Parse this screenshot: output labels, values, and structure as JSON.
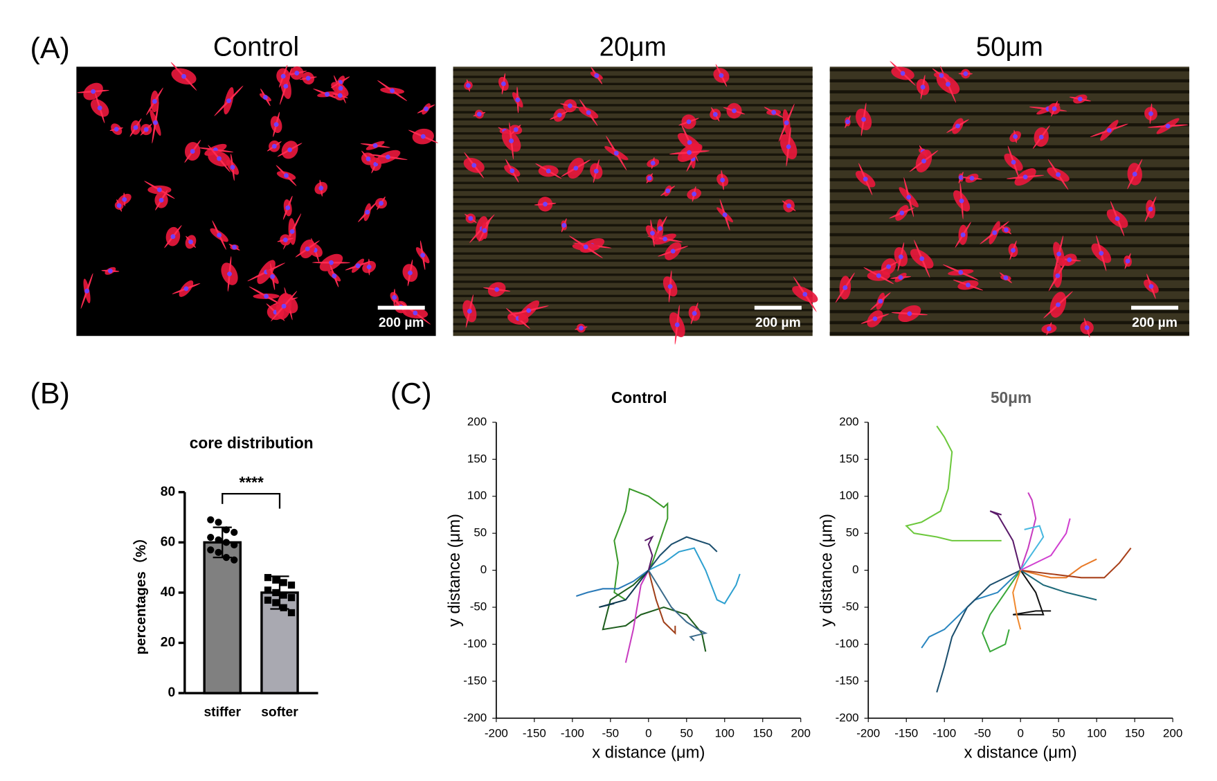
{
  "panel_a": {
    "label": "(A)",
    "images": [
      {
        "title": "Control",
        "scale_bar": "200 µm"
      },
      {
        "title": "20μm",
        "scale_bar": "200 µm"
      },
      {
        "title": "50μm",
        "scale_bar": "200 µm"
      }
    ]
  },
  "panel_b": {
    "label": "(B)"
  },
  "panel_c": {
    "label": "(C)"
  },
  "chart_data": [
    {
      "type": "bar",
      "title": "core distribution",
      "y_label": "percentages（%）",
      "categories": [
        "stiffer",
        "softer"
      ],
      "values": [
        60,
        40
      ],
      "errors": [
        6,
        6.5
      ],
      "points": [
        [
          69,
          68,
          65,
          64,
          62,
          61,
          60,
          59,
          57,
          56,
          54,
          53
        ],
        [
          46,
          45,
          44,
          43,
          41,
          40,
          39,
          38,
          37,
          36,
          34,
          32
        ]
      ],
      "colors": [
        "#808080",
        "#a9a9b1"
      ],
      "significance": "****",
      "ylim": [
        0,
        80
      ],
      "yticks": [
        0,
        20,
        40,
        60,
        80
      ]
    },
    {
      "type": "line",
      "title": "Control",
      "title_color": "#000000",
      "x_label": "x distance (μm)",
      "y_label": "y distance (μm)",
      "xlim": [
        -200,
        200
      ],
      "ylim": [
        -200,
        200
      ],
      "xticks": [
        -200,
        -150,
        -100,
        -50,
        0,
        50,
        100,
        150,
        200
      ],
      "yticks": [
        -200,
        -150,
        -100,
        -50,
        0,
        50,
        100,
        150,
        200
      ],
      "series": [
        {
          "color": "#3a9a2a",
          "x": [
            -30,
            -45,
            -40,
            -45,
            -30,
            -25,
            0,
            20,
            25,
            25,
            15,
            5,
            0
          ],
          "values": [
            -40,
            -30,
            10,
            40,
            80,
            110,
            100,
            85,
            90,
            70,
            40,
            10,
            0
          ]
        },
        {
          "color": "#1e5e1e",
          "x": [
            0,
            -20,
            -50,
            -60,
            -30,
            -10,
            20,
            50,
            70,
            75
          ],
          "values": [
            0,
            -20,
            -40,
            -80,
            -75,
            -60,
            -50,
            -60,
            -85,
            -110
          ]
        },
        {
          "color": "#2ea0d0",
          "x": [
            0,
            20,
            40,
            60,
            75,
            90,
            100,
            115,
            120
          ],
          "values": [
            0,
            10,
            25,
            30,
            0,
            -40,
            -45,
            -20,
            -5
          ]
        },
        {
          "color": "#1c4f6e",
          "x": [
            0,
            15,
            30,
            50,
            65,
            80,
            90
          ],
          "values": [
            0,
            20,
            35,
            45,
            40,
            35,
            25
          ]
        },
        {
          "color": "#c83cc0",
          "x": [
            0,
            -10,
            -15,
            -20,
            -30
          ],
          "values": [
            0,
            -20,
            -50,
            -80,
            -125
          ]
        },
        {
          "color": "#2a7ab8",
          "x": [
            0,
            -20,
            -40,
            -60,
            -80,
            -95
          ],
          "values": [
            0,
            -15,
            -25,
            -25,
            -30,
            -35
          ]
        },
        {
          "color": "#5a1a6a",
          "x": [
            0,
            5,
            0,
            5,
            -5
          ],
          "values": [
            0,
            20,
            35,
            45,
            40
          ]
        },
        {
          "color": "#a0401a",
          "x": [
            0,
            10,
            20,
            35,
            35
          ],
          "values": [
            0,
            -40,
            -70,
            -85,
            -75
          ]
        },
        {
          "color": "#0e3a50",
          "x": [
            0,
            -30,
            -65,
            -45
          ],
          "values": [
            0,
            -40,
            -50,
            -45
          ]
        },
        {
          "color": "#3a6a8a",
          "x": [
            0,
            30,
            50,
            65,
            75,
            55,
            60
          ],
          "values": [
            0,
            -50,
            -70,
            -80,
            -85,
            -90,
            -95
          ]
        }
      ]
    },
    {
      "type": "line",
      "title": "50μm",
      "title_color": "#606060",
      "x_label": "x distance (μm)",
      "y_label": "y distance (μm)",
      "xlim": [
        -200,
        200
      ],
      "ylim": [
        -200,
        200
      ],
      "xticks": [
        -200,
        -150,
        -100,
        -50,
        0,
        50,
        100,
        150,
        200
      ],
      "yticks": [
        -200,
        -150,
        -100,
        -50,
        0,
        50,
        100,
        150,
        200
      ],
      "series": [
        {
          "color": "#6cc83c",
          "x": [
            -25,
            -50,
            -90,
            -110,
            -140,
            -150,
            -130,
            -105,
            -95,
            -90,
            -100,
            -110
          ],
          "values": [
            40,
            40,
            40,
            45,
            50,
            60,
            65,
            80,
            110,
            160,
            180,
            195
          ]
        },
        {
          "color": "#2a86c0",
          "x": [
            0,
            -30,
            -60,
            -80,
            -100,
            -120,
            -130
          ],
          "values": [
            0,
            -30,
            -40,
            -60,
            -80,
            -90,
            -105
          ]
        },
        {
          "color": "#1c4f6e",
          "x": [
            0,
            -40,
            -70,
            -90,
            -100,
            -110
          ],
          "values": [
            0,
            -20,
            -50,
            -90,
            -130,
            -165
          ]
        },
        {
          "color": "#e87a28",
          "x": [
            0,
            20,
            40,
            60,
            80,
            100
          ],
          "values": [
            0,
            -5,
            -10,
            -10,
            5,
            15
          ]
        },
        {
          "color": "#a8401a",
          "x": [
            0,
            40,
            80,
            110,
            130,
            145
          ],
          "values": [
            0,
            -5,
            -10,
            -10,
            10,
            30
          ]
        },
        {
          "color": "#3aa83a",
          "x": [
            0,
            -20,
            -40,
            -50,
            -40,
            -20,
            -15
          ],
          "values": [
            0,
            -30,
            -60,
            -85,
            -110,
            -100,
            -80
          ]
        },
        {
          "color": "#c83cc0",
          "x": [
            0,
            10,
            20,
            15,
            10
          ],
          "values": [
            0,
            30,
            70,
            95,
            105
          ]
        },
        {
          "color": "#5a1a6a",
          "x": [
            0,
            -10,
            -30,
            -40,
            -25
          ],
          "values": [
            0,
            40,
            75,
            80,
            75
          ]
        },
        {
          "color": "#48b8e0",
          "x": [
            0,
            20,
            30,
            25,
            5
          ],
          "values": [
            0,
            30,
            45,
            60,
            55
          ]
        },
        {
          "color": "#111111",
          "x": [
            0,
            20,
            30,
            -10,
            20,
            40
          ],
          "values": [
            0,
            -30,
            -60,
            -60,
            -55,
            -55
          ]
        },
        {
          "color": "#1e6a7a",
          "x": [
            0,
            30,
            60,
            80,
            100
          ],
          "values": [
            0,
            -20,
            -30,
            -35,
            -40
          ]
        },
        {
          "color": "#d040d0",
          "x": [
            0,
            40,
            60,
            65
          ],
          "values": [
            0,
            20,
            50,
            70
          ]
        },
        {
          "color": "#f08a30",
          "x": [
            0,
            -10,
            -5,
            0
          ],
          "values": [
            0,
            -30,
            -60,
            -80
          ]
        }
      ]
    }
  ]
}
